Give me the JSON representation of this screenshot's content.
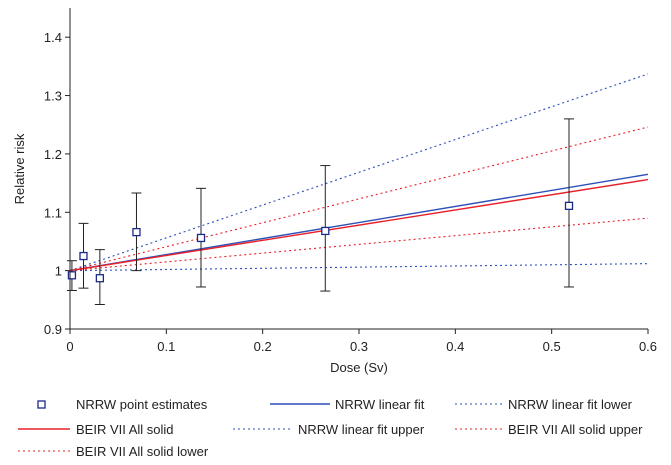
{
  "chart_data": {
    "type": "line",
    "title": "",
    "xlabel": "Dose (Sv)",
    "ylabel": "Relative risk",
    "xlim": [
      0,
      0.6
    ],
    "ylim": [
      0.9,
      1.45
    ],
    "xticks": [
      0,
      0.1,
      0.2,
      0.3,
      0.4,
      0.5,
      0.6
    ],
    "xtick_labels": [
      "0",
      "0.1",
      "0.2",
      "0.3",
      "0.4",
      "0.5",
      "0.6"
    ],
    "yticks": [
      0.9,
      1,
      1.1,
      1.2,
      1.3,
      1.4
    ],
    "ytick_labels": [
      "0.9",
      "1",
      "1.1",
      "1.2",
      "1.3",
      "1.4"
    ],
    "grid": false,
    "legend_position": "bottom",
    "points": {
      "name": "NRRW point estimates",
      "color": "#1a2a8a",
      "x": [
        0.002,
        0.014,
        0.031,
        0.069,
        0.136,
        0.265,
        0.518
      ],
      "y": [
        0.992,
        1.025,
        0.987,
        1.066,
        1.056,
        1.068,
        1.111
      ],
      "ci_low": [
        0.966,
        0.97,
        0.942,
        1.0,
        0.972,
        0.965,
        0.972
      ],
      "ci_high": [
        1.017,
        1.081,
        1.036,
        1.133,
        1.141,
        1.18,
        1.26
      ]
    },
    "series": [
      {
        "name": "NRRW linear fit",
        "style": "solid",
        "color": "#2e4fb8",
        "x": [
          0,
          0.6
        ],
        "y": [
          1.0,
          1.165
        ]
      },
      {
        "name": "NRRW linear fit lower",
        "style": "dotted",
        "color": "#2e4fb8",
        "x": [
          0,
          0.6
        ],
        "y": [
          1.0,
          1.012
        ]
      },
      {
        "name": "NRRW linear fit upper",
        "style": "dotted",
        "color": "#2e4fb8",
        "x": [
          0,
          0.6
        ],
        "y": [
          1.0,
          1.337
        ]
      },
      {
        "name": "BEIR VII All solid",
        "style": "solid",
        "color": "#e8202a",
        "x": [
          0,
          0.6
        ],
        "y": [
          1.0,
          1.156
        ]
      },
      {
        "name": "BEIR VII All solid upper",
        "style": "dotted",
        "color": "#e8202a",
        "x": [
          0,
          0.6
        ],
        "y": [
          1.0,
          1.246
        ]
      },
      {
        "name": "BEIR VII All solid lower",
        "style": "dotted",
        "color": "#e8202a",
        "x": [
          0,
          0.6
        ],
        "y": [
          1.0,
          1.09
        ]
      }
    ],
    "legend": [
      {
        "label": "NRRW point estimates",
        "kind": "marker",
        "color": "#1a2a8a"
      },
      {
        "label": "NRRW linear fit",
        "kind": "solid",
        "color": "#2e4fb8"
      },
      {
        "label": "NRRW linear fit lower",
        "kind": "dotted",
        "color": "#2e4fb8"
      },
      {
        "label": "BEIR VII All solid",
        "kind": "solid",
        "color": "#e8202a"
      },
      {
        "label": "NRRW linear fit upper",
        "kind": "dotted",
        "color": "#2e4fb8"
      },
      {
        "label": "BEIR VII All solid upper",
        "kind": "dotted",
        "color": "#e8202a"
      },
      {
        "label": "BEIR VII All solid lower",
        "kind": "dotted",
        "color": "#e8202a"
      }
    ]
  }
}
